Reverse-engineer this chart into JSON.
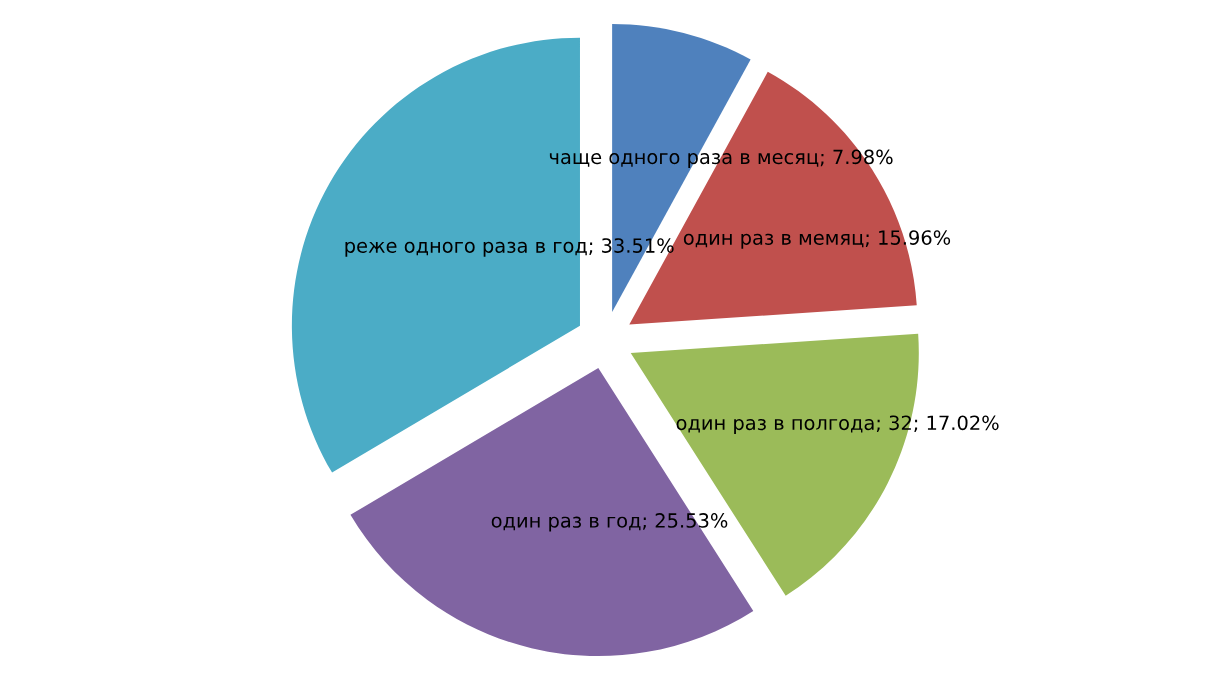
{
  "chart_data": {
    "type": "pie",
    "categories": [
      "чаще одного раза в месяц",
      "один раз в мемяц",
      "один раз в полгода",
      "один раз в год",
      "реже одного раза в год"
    ],
    "values": [
      7.98,
      15.96,
      17.02,
      25.53,
      33.51
    ],
    "value_labels": [
      "; 7.98%",
      "; 15.96%",
      "; 32; 17.02%",
      "; 25.53%",
      "; 33.51%"
    ],
    "colors": [
      "#4f81bd",
      "#c0504d",
      "#9bbb59",
      "#8064a2",
      "#4bacc6"
    ],
    "legend": false
  }
}
